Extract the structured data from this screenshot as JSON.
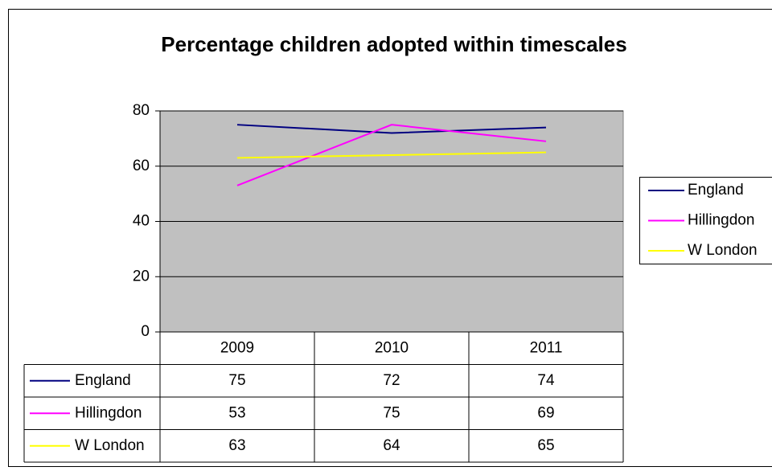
{
  "chart_data": {
    "type": "line",
    "title": "Percentage children adopted within timescales",
    "categories": [
      "2009",
      "2010",
      "2011"
    ],
    "series": [
      {
        "name": "England",
        "color": "#000080",
        "values": [
          75,
          72,
          74
        ]
      },
      {
        "name": "Hillingdon",
        "color": "#ff00ff",
        "values": [
          53,
          75,
          69
        ]
      },
      {
        "name": "W London",
        "color": "#ffff00",
        "values": [
          63,
          64,
          65
        ]
      }
    ],
    "ylim": [
      0,
      80
    ],
    "yticks": [
      0,
      20,
      40,
      60,
      80
    ],
    "grid": true,
    "legend": "right",
    "data_table": true
  }
}
